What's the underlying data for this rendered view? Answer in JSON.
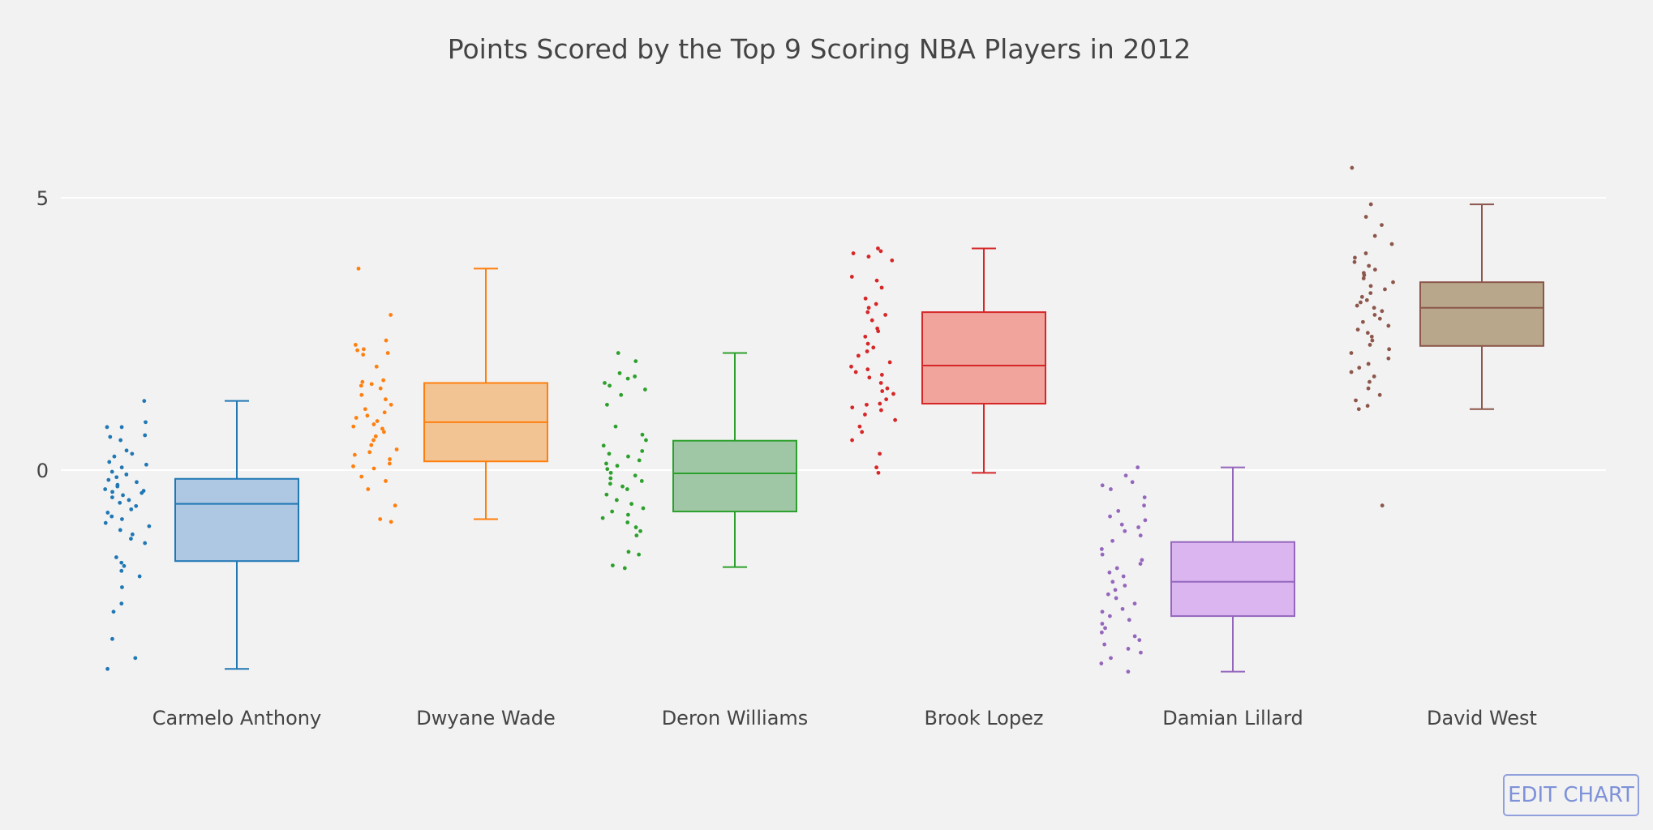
{
  "chart_data": {
    "type": "box",
    "title": "Points Scored by the Top 9 Scoring NBA Players in 2012",
    "yticks": [
      0,
      5
    ],
    "ylim": [
      -4,
      6
    ],
    "grid": true,
    "boxpoints": "all",
    "series": [
      {
        "name": "Carmelo Anthony",
        "color": "#1f77b4",
        "fill": "#aec7e3",
        "min": -3.65,
        "q1": -1.67,
        "median": -0.62,
        "q3": -0.16,
        "max": 1.27,
        "points": [
          1.27,
          0.88,
          0.79,
          0.79,
          0.64,
          0.61,
          0.55,
          0.36,
          0.3,
          0.25,
          0.15,
          0.1,
          0.05,
          -0.03,
          -0.08,
          -0.13,
          -0.18,
          -0.22,
          -0.27,
          -0.3,
          -0.35,
          -0.38,
          -0.4,
          -0.42,
          -0.46,
          -0.5,
          -0.55,
          -0.6,
          -0.66,
          -0.72,
          -0.78,
          -0.85,
          -0.9,
          -0.97,
          -1.03,
          -1.1,
          -1.18,
          -1.26,
          -1.34,
          -1.6,
          -1.7,
          -1.76,
          -1.85,
          -1.95,
          -2.15,
          -2.45,
          -2.6,
          -3.1,
          -3.45,
          -3.65
        ]
      },
      {
        "name": "Dwyane Wade",
        "color": "#ff7f0e",
        "fill": "#f2c494",
        "min": -0.9,
        "q1": 0.16,
        "median": 0.88,
        "q3": 1.6,
        "max": 3.7,
        "points": [
          3.7,
          2.85,
          2.38,
          2.3,
          2.22,
          2.2,
          2.15,
          2.12,
          1.9,
          1.65,
          1.62,
          1.58,
          1.55,
          1.5,
          1.38,
          1.3,
          1.2,
          1.12,
          1.06,
          1.0,
          0.96,
          0.9,
          0.84,
          0.8,
          0.76,
          0.7,
          0.62,
          0.55,
          0.46,
          0.38,
          0.33,
          0.28,
          0.2,
          0.12,
          0.07,
          0.03,
          -0.12,
          -0.2,
          -0.35,
          -0.65,
          -0.9,
          -0.95
        ]
      },
      {
        "name": "Deron Williams",
        "color": "#2ca02c",
        "fill": "#a0c7a5",
        "min": -1.78,
        "q1": -0.76,
        "median": -0.06,
        "q3": 0.54,
        "max": 2.15,
        "points": [
          2.15,
          2.0,
          1.78,
          1.72,
          1.68,
          1.6,
          1.55,
          1.48,
          1.38,
          1.2,
          0.8,
          0.65,
          0.55,
          0.45,
          0.35,
          0.3,
          0.25,
          0.18,
          0.12,
          0.08,
          0.02,
          -0.05,
          -0.1,
          -0.15,
          -0.2,
          -0.25,
          -0.3,
          -0.35,
          -0.45,
          -0.55,
          -0.62,
          -0.7,
          -0.76,
          -0.82,
          -0.88,
          -0.96,
          -1.05,
          -1.12,
          -1.2,
          -1.5,
          -1.55,
          -1.75,
          -1.8
        ]
      },
      {
        "name": "Brook Lopez",
        "color": "#d62728",
        "fill": "#f0a49c",
        "min": -0.05,
        "q1": 1.22,
        "median": 1.92,
        "q3": 2.9,
        "max": 4.07,
        "points": [
          4.07,
          4.02,
          3.98,
          3.92,
          3.85,
          3.55,
          3.48,
          3.35,
          3.15,
          3.05,
          2.98,
          2.9,
          2.85,
          2.75,
          2.6,
          2.55,
          2.45,
          2.32,
          2.25,
          2.18,
          2.1,
          1.98,
          1.9,
          1.85,
          1.8,
          1.75,
          1.7,
          1.6,
          1.5,
          1.45,
          1.4,
          1.3,
          1.22,
          1.2,
          1.15,
          1.1,
          1.02,
          0.92,
          0.8,
          0.7,
          0.55,
          0.3,
          0.05,
          -0.05
        ]
      },
      {
        "name": "Damian Lillard",
        "color": "#9467bd",
        "fill": "#dab5f0",
        "min": -3.7,
        "q1": -2.68,
        "median": -2.05,
        "q3": -1.32,
        "max": 0.05,
        "points": [
          0.05,
          -0.1,
          -0.22,
          -0.28,
          -0.35,
          -0.5,
          -0.65,
          -0.75,
          -0.85,
          -0.92,
          -1.0,
          -1.05,
          -1.12,
          -1.2,
          -1.3,
          -1.45,
          -1.55,
          -1.65,
          -1.72,
          -1.8,
          -1.88,
          -1.95,
          -2.05,
          -2.12,
          -2.2,
          -2.28,
          -2.35,
          -2.45,
          -2.55,
          -2.6,
          -2.68,
          -2.75,
          -2.82,
          -2.9,
          -2.98,
          -3.05,
          -3.12,
          -3.2,
          -3.28,
          -3.35,
          -3.45,
          -3.55,
          -3.7
        ]
      },
      {
        "name": "David West",
        "color": "#8c564b",
        "fill": "#b8a78a",
        "min": 1.12,
        "q1": 2.28,
        "median": 2.98,
        "q3": 3.45,
        "max": 4.88,
        "points": [
          5.55,
          4.88,
          4.65,
          4.5,
          4.3,
          4.15,
          3.98,
          3.9,
          3.82,
          3.75,
          3.68,
          3.62,
          3.58,
          3.52,
          3.45,
          3.38,
          3.32,
          3.25,
          3.18,
          3.12,
          3.08,
          3.02,
          2.98,
          2.92,
          2.85,
          2.78,
          2.72,
          2.65,
          2.58,
          2.52,
          2.45,
          2.38,
          2.3,
          2.22,
          2.15,
          2.05,
          1.95,
          1.88,
          1.8,
          1.72,
          1.62,
          1.5,
          1.38,
          1.28,
          1.18,
          1.12,
          -0.65
        ]
      }
    ]
  },
  "edit_button": {
    "label": "EDIT CHART"
  }
}
